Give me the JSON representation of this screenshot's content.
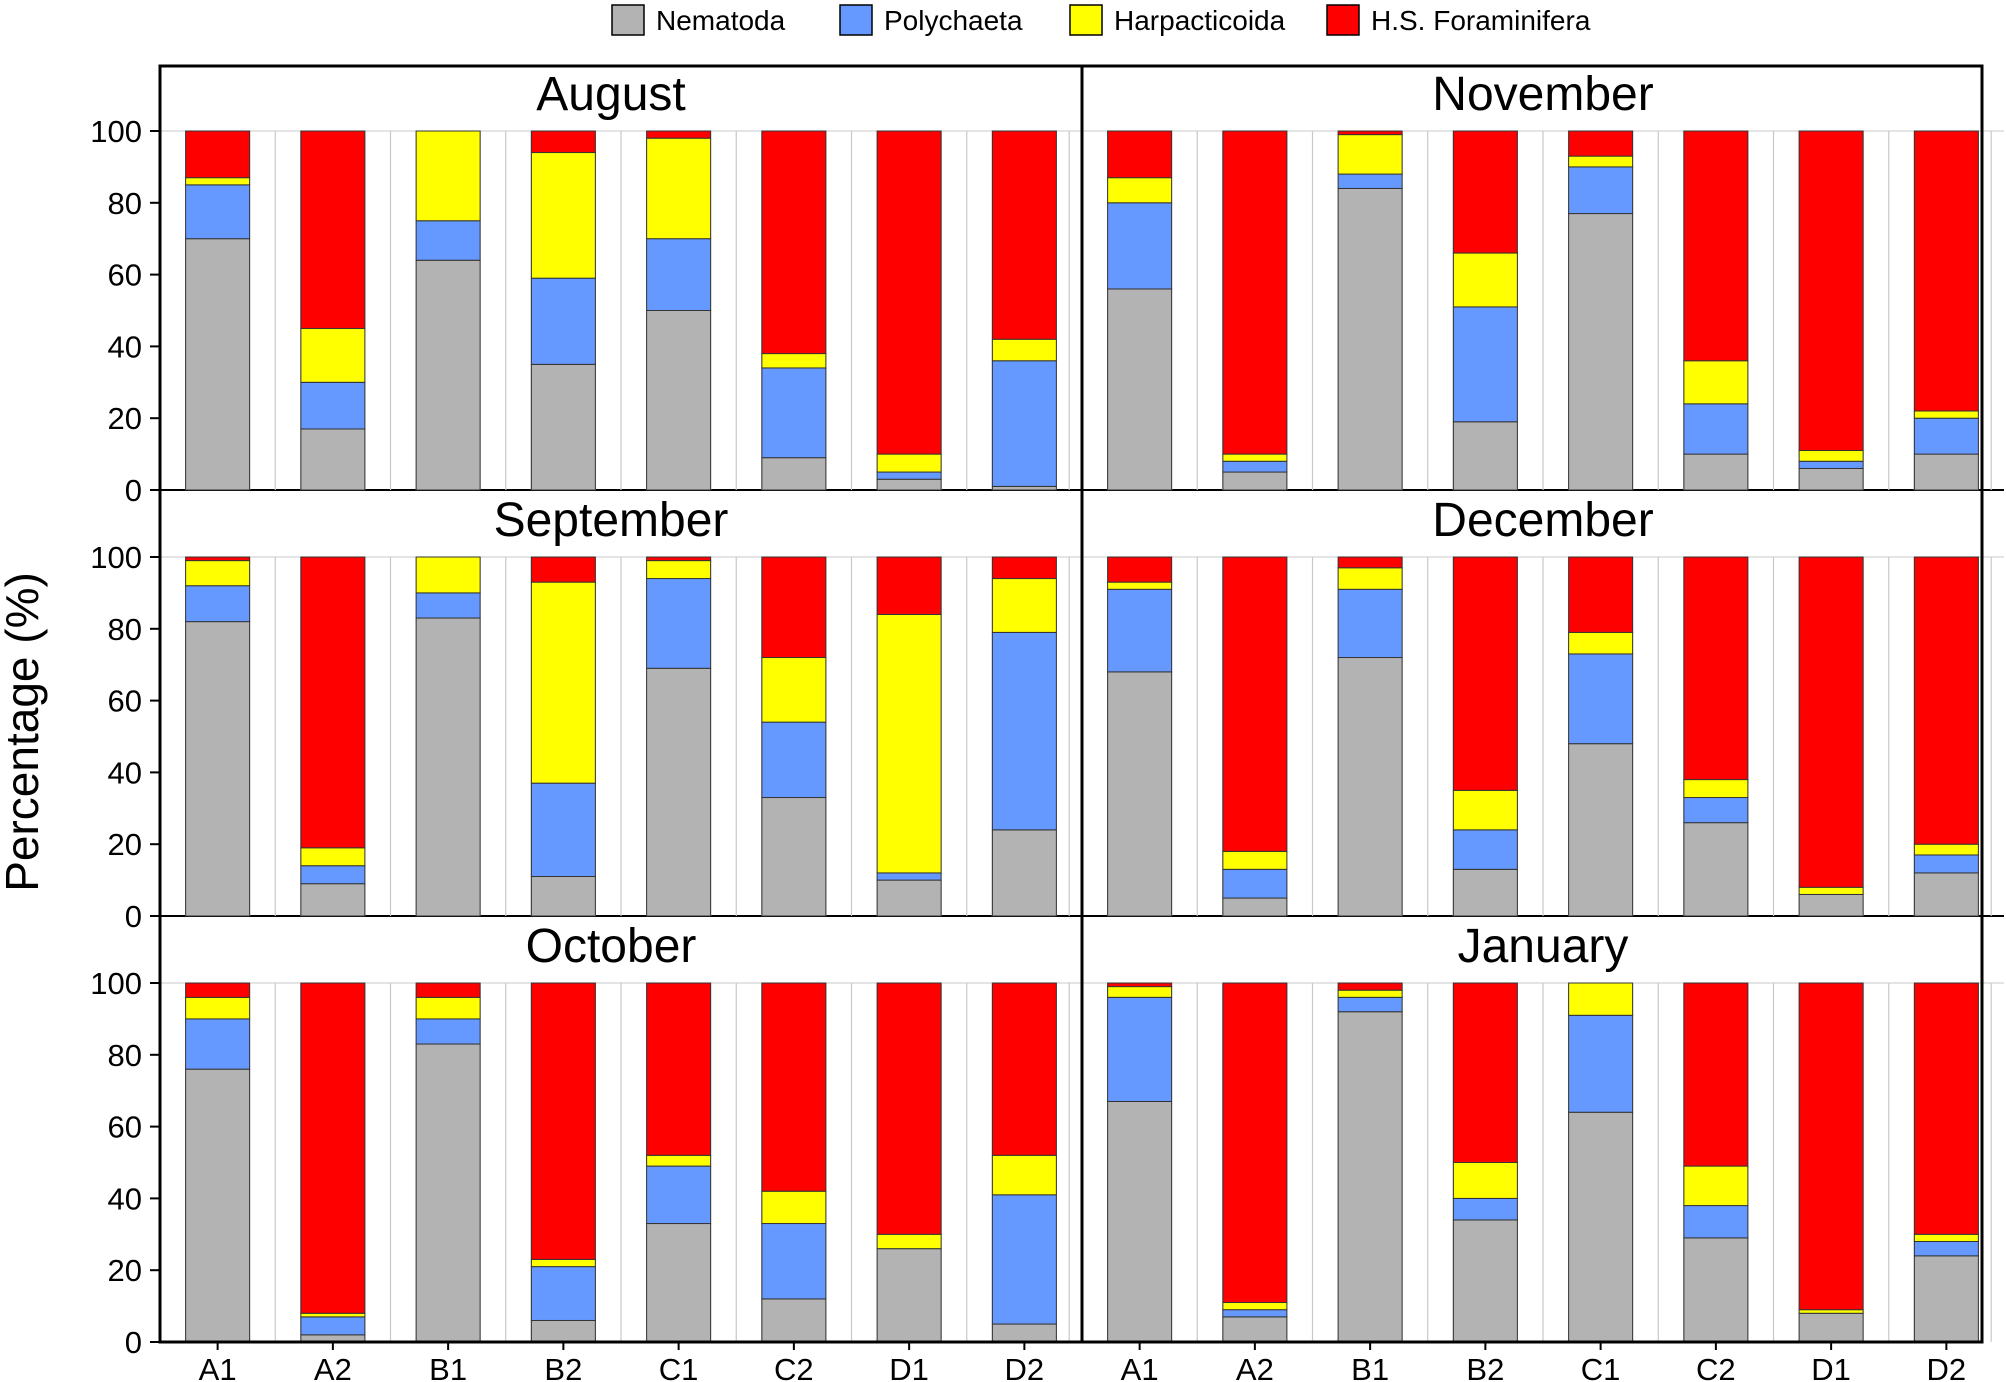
{
  "chart_data": {
    "type": "bar",
    "stacked": true,
    "ylabel": "Percentage (%)",
    "ylim": [
      0,
      100
    ],
    "yticks": [
      "0",
      "20",
      "40",
      "60",
      "80",
      "100"
    ],
    "categories": [
      "A1",
      "A2",
      "B1",
      "B2",
      "C1",
      "C2",
      "D1",
      "D2"
    ],
    "grid": "vertical",
    "legend_position": "top",
    "series": [
      {
        "name": "Nematoda",
        "color": "#b3b3b3"
      },
      {
        "name": "Polychaeta",
        "color": "#6699ff"
      },
      {
        "name": "Harpacticoida",
        "color": "#ffff00"
      },
      {
        "name": "H.S. Foraminifera",
        "color": "#ff0000"
      }
    ],
    "panels": [
      {
        "title": "August",
        "values": [
          [
            70,
            15,
            2,
            13
          ],
          [
            17,
            13,
            15,
            55
          ],
          [
            64,
            11,
            25,
            0
          ],
          [
            35,
            24,
            35,
            6
          ],
          [
            50,
            20,
            28,
            2
          ],
          [
            9,
            25,
            4,
            62
          ],
          [
            3,
            2,
            5,
            90
          ],
          [
            1,
            35,
            6,
            58
          ]
        ]
      },
      {
        "title": "November",
        "values": [
          [
            56,
            24,
            7,
            13
          ],
          [
            5,
            3,
            2,
            90
          ],
          [
            84,
            4,
            11,
            1
          ],
          [
            19,
            32,
            15,
            34
          ],
          [
            77,
            13,
            3,
            7
          ],
          [
            10,
            14,
            12,
            64
          ],
          [
            6,
            2,
            3,
            89
          ],
          [
            10,
            10,
            2,
            78
          ]
        ]
      },
      {
        "title": "September",
        "values": [
          [
            82,
            10,
            7,
            1
          ],
          [
            9,
            5,
            5,
            81
          ],
          [
            83,
            7,
            10,
            0
          ],
          [
            11,
            26,
            56,
            7
          ],
          [
            69,
            25,
            5,
            1
          ],
          [
            33,
            21,
            18,
            28
          ],
          [
            10,
            2,
            72,
            16
          ],
          [
            24,
            55,
            15,
            6
          ]
        ]
      },
      {
        "title": "December",
        "values": [
          [
            68,
            23,
            2,
            7
          ],
          [
            5,
            8,
            5,
            82
          ],
          [
            72,
            19,
            6,
            3
          ],
          [
            13,
            11,
            11,
            65
          ],
          [
            48,
            25,
            6,
            21
          ],
          [
            26,
            7,
            5,
            62
          ],
          [
            6,
            0,
            2,
            92
          ],
          [
            12,
            5,
            3,
            80
          ]
        ]
      },
      {
        "title": "October",
        "values": [
          [
            76,
            14,
            6,
            4
          ],
          [
            2,
            5,
            1,
            92
          ],
          [
            83,
            7,
            6,
            4
          ],
          [
            6,
            15,
            2,
            77
          ],
          [
            33,
            16,
            3,
            48
          ],
          [
            12,
            21,
            9,
            58
          ],
          [
            26,
            0,
            4,
            70
          ],
          [
            5,
            36,
            11,
            48
          ]
        ]
      },
      {
        "title": "January",
        "values": [
          [
            67,
            29,
            3,
            1
          ],
          [
            7,
            2,
            2,
            89
          ],
          [
            92,
            4,
            2,
            2
          ],
          [
            34,
            6,
            10,
            50
          ],
          [
            64,
            27,
            9,
            0
          ],
          [
            29,
            9,
            11,
            51
          ],
          [
            8,
            0,
            1,
            91
          ],
          [
            24,
            4,
            2,
            70
          ]
        ]
      }
    ]
  }
}
